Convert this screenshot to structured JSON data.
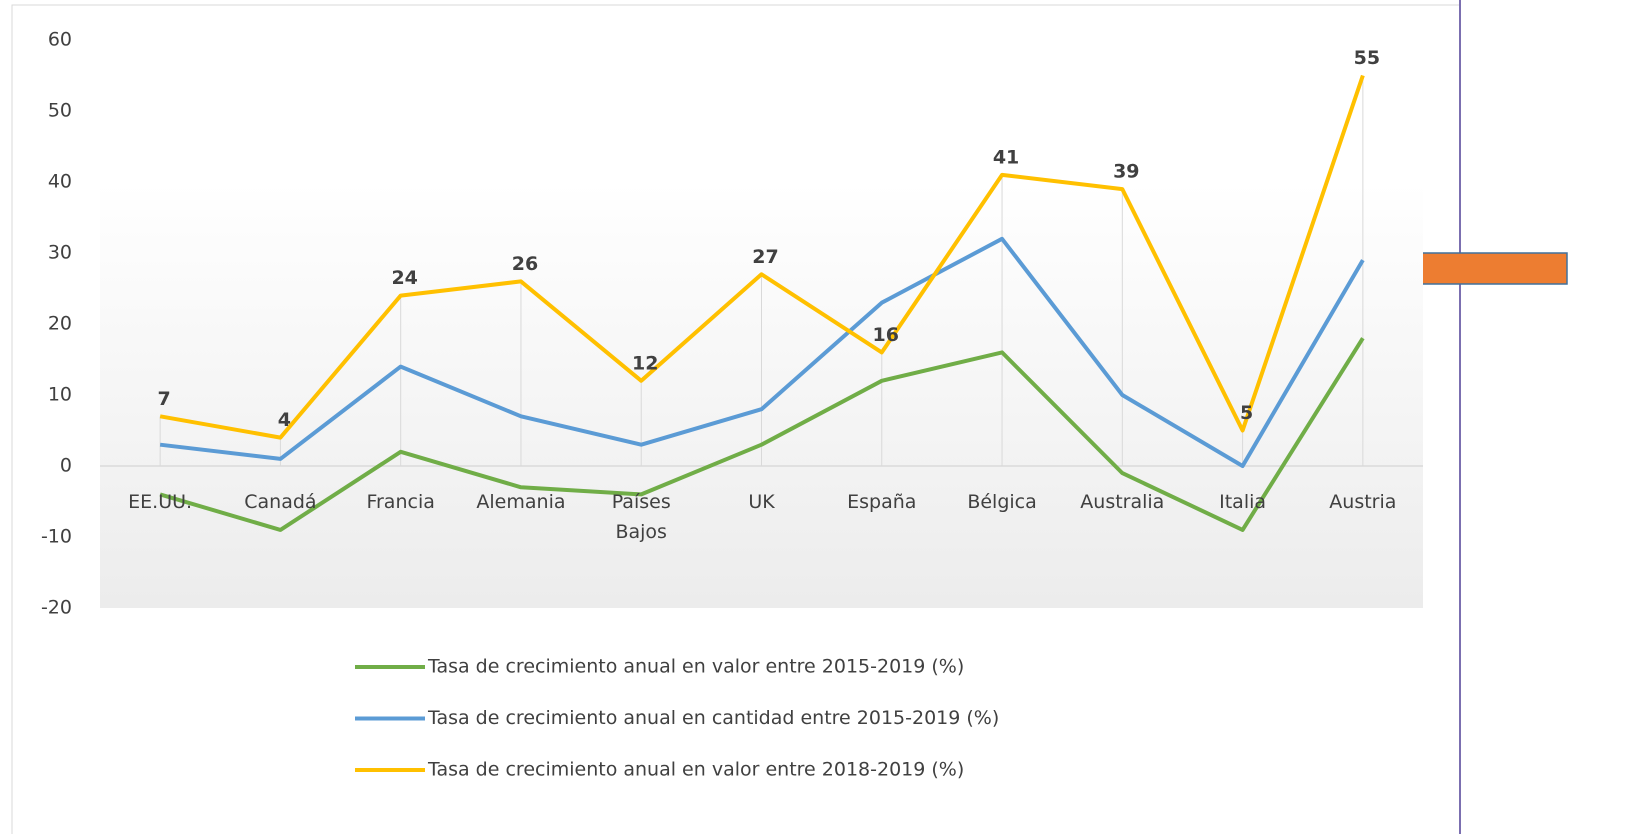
{
  "chart_data": {
    "type": "line",
    "categories": [
      "EE.UU.",
      "Canadá",
      "Francia",
      "Alemania",
      "Países Bajos",
      "UK",
      "España",
      "Bélgica",
      "Australia",
      "Italia",
      "Austria"
    ],
    "series": [
      {
        "name": "Tasa de crecimiento anual en valor entre 2015-2019 (%)",
        "color": "#70ad47",
        "values": [
          -4,
          -9,
          2,
          -3,
          -4,
          3,
          12,
          16,
          -1,
          -9,
          18
        ]
      },
      {
        "name": "Tasa de crecimiento anual en cantidad entre 2015-2019 (%)",
        "color": "#5b9bd5",
        "values": [
          3,
          1,
          14,
          7,
          3,
          8,
          23,
          32,
          10,
          0,
          29
        ]
      },
      {
        "name": "Tasa de crecimiento anual en valor entre 2018-2019 (%)",
        "color": "#ffc000",
        "values": [
          7,
          4,
          24,
          26,
          12,
          27,
          16,
          41,
          39,
          5,
          55
        ],
        "data_labels": true
      }
    ],
    "ylim": [
      -20,
      60
    ],
    "yticks": [
      -20,
      -10,
      0,
      10,
      20,
      30,
      40,
      50,
      60
    ],
    "legend": "bottom"
  }
}
